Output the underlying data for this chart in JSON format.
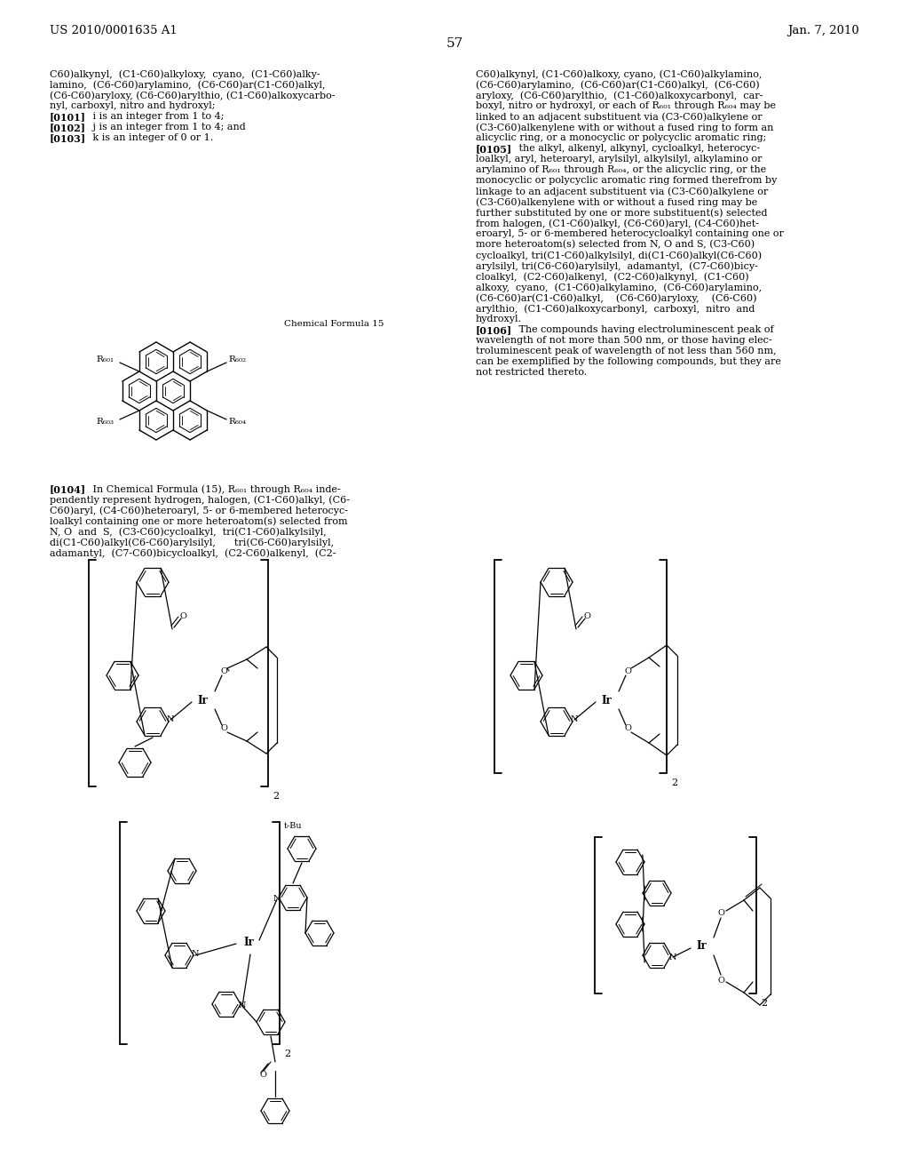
{
  "page_header_left": "US 2010/0001635 A1",
  "page_header_right": "Jan. 7, 2010",
  "page_number": "57",
  "bg": "#ffffff",
  "fg": "#000000"
}
